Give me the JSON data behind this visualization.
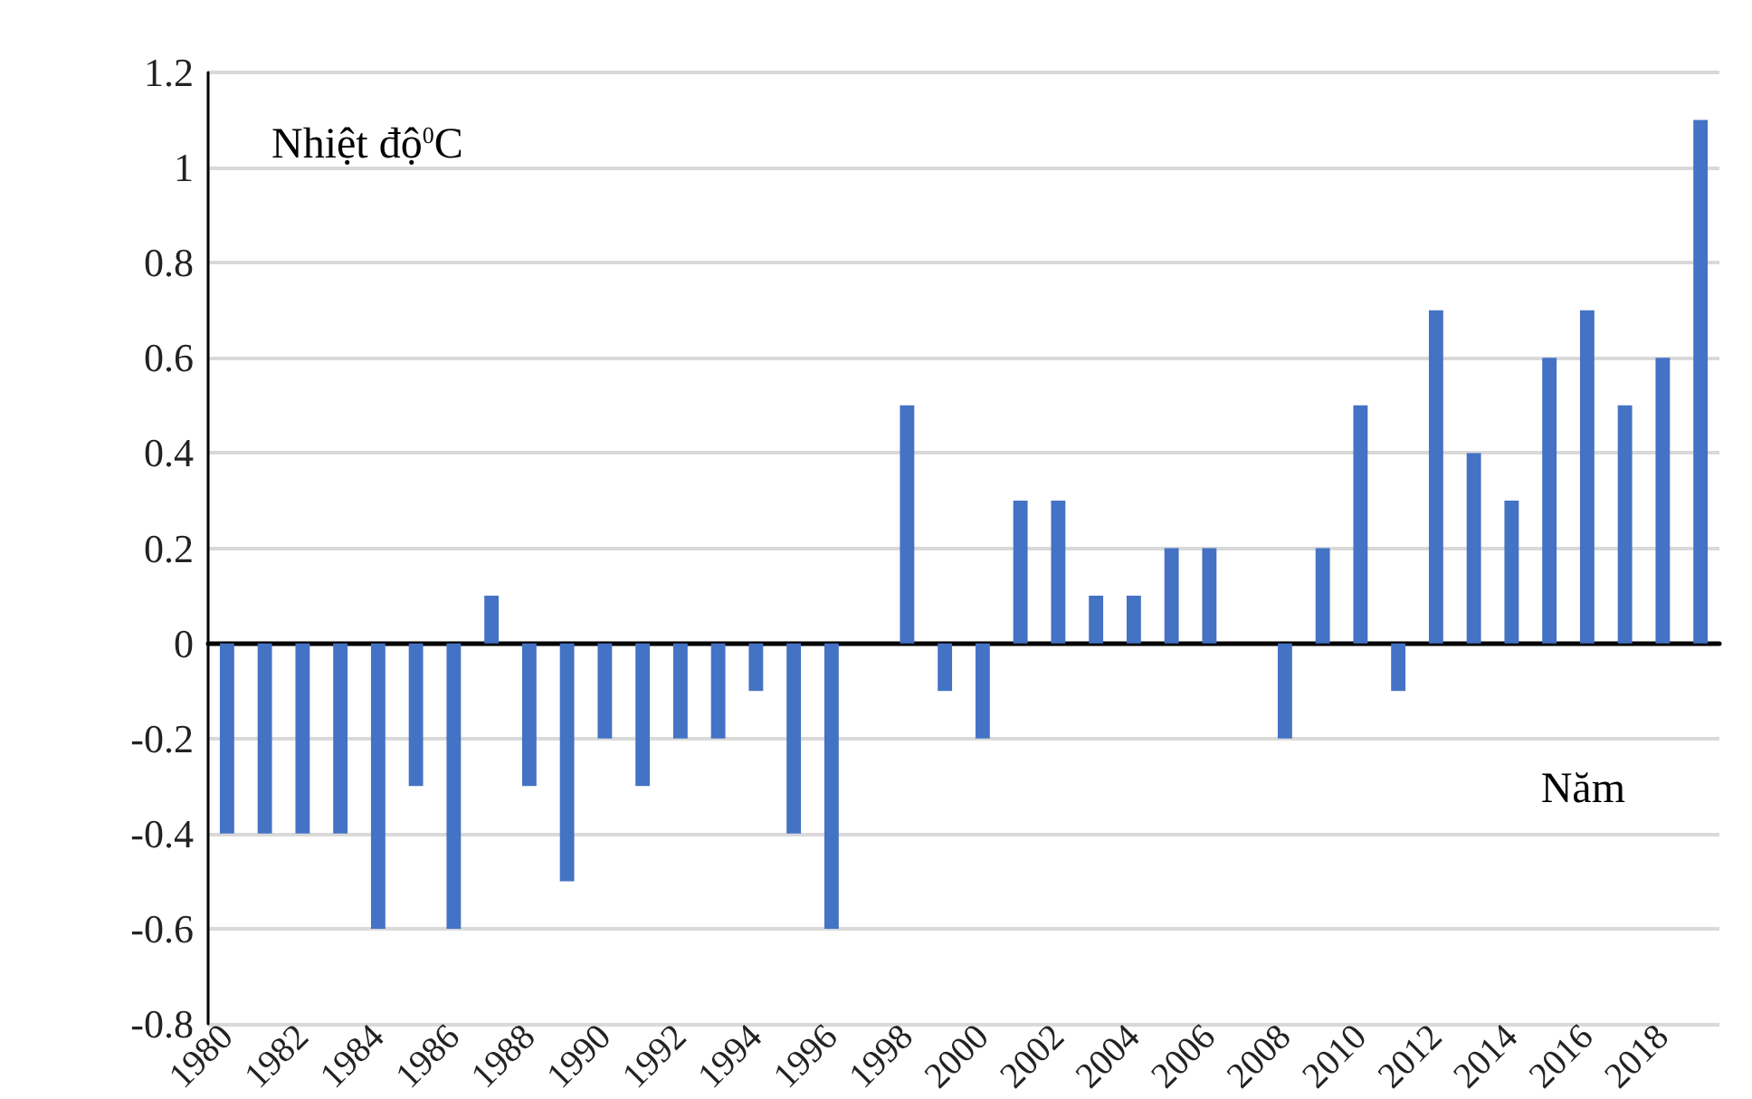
{
  "chart_data": {
    "type": "bar",
    "ylabel": "Nhiệt độ$^{0}$C",
    "xlabel": "Năm",
    "categories": [
      "1980",
      null,
      "1982",
      null,
      "1984",
      null,
      "1986",
      null,
      "1988",
      null,
      "1990",
      null,
      "1992",
      null,
      "1994",
      null,
      "1996",
      null,
      "1998",
      null,
      "2000",
      null,
      "2002",
      null,
      "2004",
      null,
      "2006",
      null,
      "2008",
      null,
      "2010",
      null,
      "2012",
      null,
      "2014",
      null,
      "2016",
      null,
      "2018",
      null
    ],
    "values": [
      -0.4,
      -0.4,
      -0.4,
      -0.4,
      -0.6,
      -0.3,
      -0.6,
      0.1,
      -0.3,
      -0.5,
      -0.2,
      -0.3,
      -0.2,
      -0.2,
      -0.1,
      -0.4,
      -0.6,
      0,
      0.5,
      -0.1,
      -0.2,
      0.3,
      0.3,
      0.1,
      0.1,
      0.2,
      0.2,
      0,
      -0.2,
      0.2,
      0.5,
      -0.1,
      0.7,
      0.4,
      0.3,
      0.6,
      0.7,
      0.5,
      0.6,
      1.1
    ],
    "color": "#4472c4",
    "ylim": [
      -0.8,
      1.2
    ],
    "yticks": [
      -0.8,
      -0.6,
      -0.4,
      -0.2,
      0,
      0.2,
      0.4,
      0.6,
      0.8,
      1,
      1.2
    ],
    "grid": "y"
  }
}
